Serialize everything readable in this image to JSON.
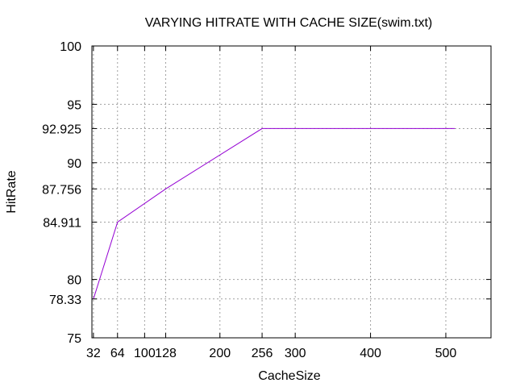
{
  "chart_data": {
    "type": "line",
    "title": "VARYING HITRATE WITH CACHE SIZE(swim.txt)",
    "xlabel": "CacheSize",
    "ylabel": "HitRate",
    "xlim": [
      30,
      560
    ],
    "ylim": [
      75,
      100
    ],
    "x_ticks": [
      32,
      64,
      100,
      128,
      200,
      256,
      300,
      400,
      500
    ],
    "y_ticks": [
      75,
      78.33,
      80,
      84.911,
      87.756,
      90,
      92.925,
      95,
      100
    ],
    "x_tick_labels": [
      "32",
      "64",
      "100",
      "128",
      "200",
      "256",
      "300",
      "400",
      "500"
    ],
    "y_tick_labels": [
      "75",
      "78.33",
      "80",
      "84.911",
      "87.756",
      "90",
      "92.925",
      "95",
      "100"
    ],
    "grid": true,
    "series": [
      {
        "color": "#9400d3",
        "x": [
          32,
          64,
          128,
          256,
          512
        ],
        "y": [
          78.33,
          84.911,
          87.756,
          92.925,
          92.925
        ]
      }
    ]
  }
}
